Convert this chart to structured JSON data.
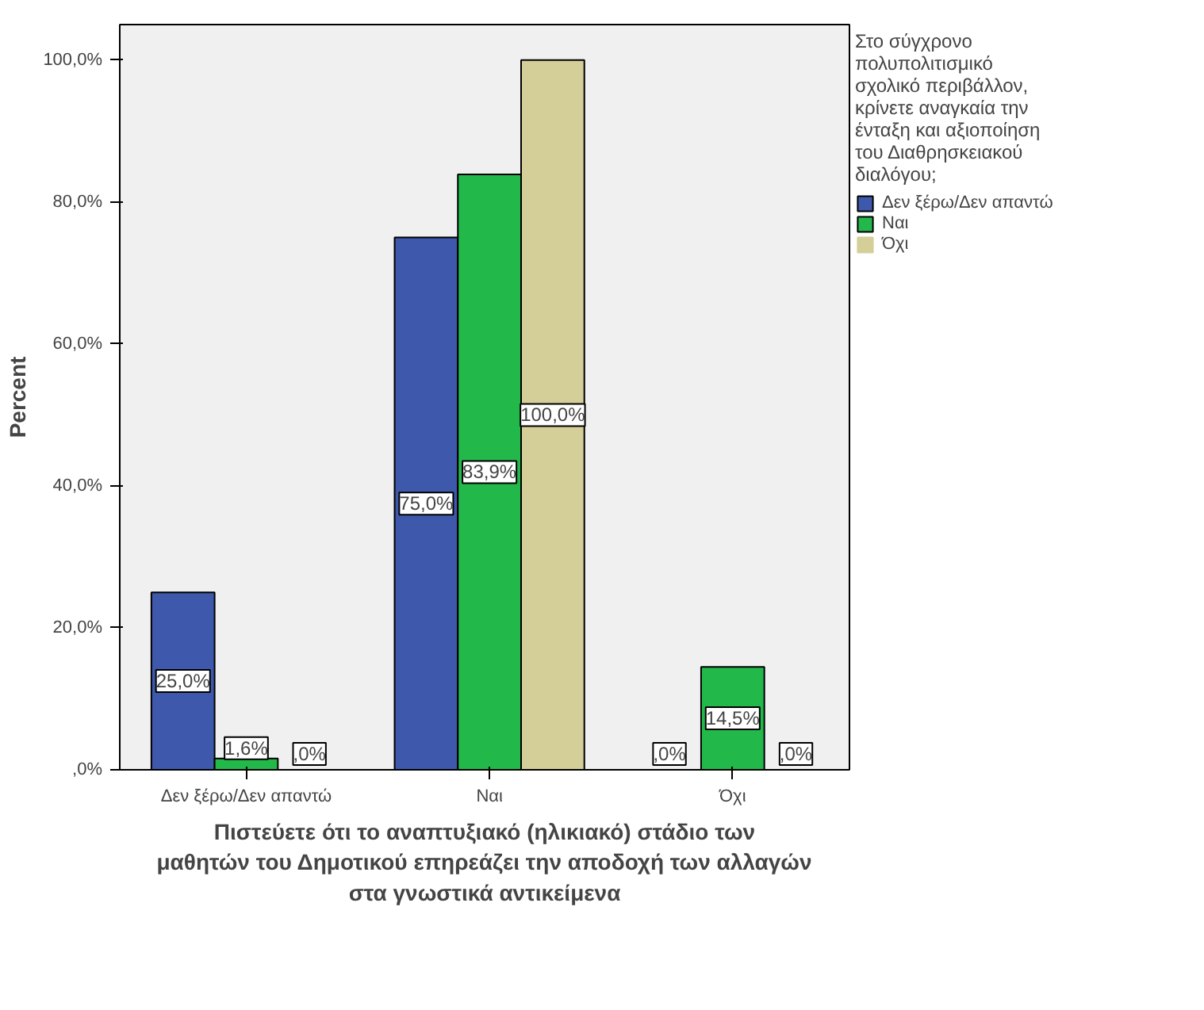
{
  "chart_data": {
    "type": "bar",
    "xlabel": "Πιστεύετε ότι το αναπτυξιακό (ηλικιακό) στάδιο των μαθητών του Δημοτικού επηρεάζει την αποδοχή των αλλαγών στα γνωστικά αντικείμενα",
    "ylabel": "Percent",
    "legend_title": "Στο σύγχρονο πολυπολιτισμικό σχολικό περιβάλλον, κρίνετε αναγκαία την ένταξη και αξιοποίηση του Διαθρησκειακού διαλόγου;",
    "categories": [
      "Δεν ξέρω/Δεν απαντώ",
      "Ναι",
      "Όχι"
    ],
    "series": [
      {
        "name": "Δεν ξέρω/Δεν απαντώ",
        "color": "#3e58ac",
        "values": [
          25.0,
          75.0,
          0.0
        ],
        "value_labels": [
          "25,0%",
          "75,0%",
          ",0%"
        ]
      },
      {
        "name": "Ναι",
        "color": "#22b84a",
        "values": [
          1.6,
          83.9,
          14.5
        ],
        "value_labels": [
          "1,6%",
          "83,9%",
          "14,5%"
        ]
      },
      {
        "name": "Όχι",
        "color": "#d4cf98",
        "values": [
          0.0,
          100.0,
          0.0
        ],
        "value_labels": [
          ",0%",
          "100,0%",
          ",0%"
        ]
      }
    ],
    "ylim": [
      0,
      105
    ],
    "yticks": [
      {
        "value": 0,
        "label": ",0%"
      },
      {
        "value": 20,
        "label": "20,0%"
      },
      {
        "value": 40,
        "label": "40,0%"
      },
      {
        "value": 60,
        "label": "60,0%"
      },
      {
        "value": 80,
        "label": "80,0%"
      },
      {
        "value": 100,
        "label": "100,0%"
      }
    ],
    "grid": false,
    "legend": "right"
  }
}
